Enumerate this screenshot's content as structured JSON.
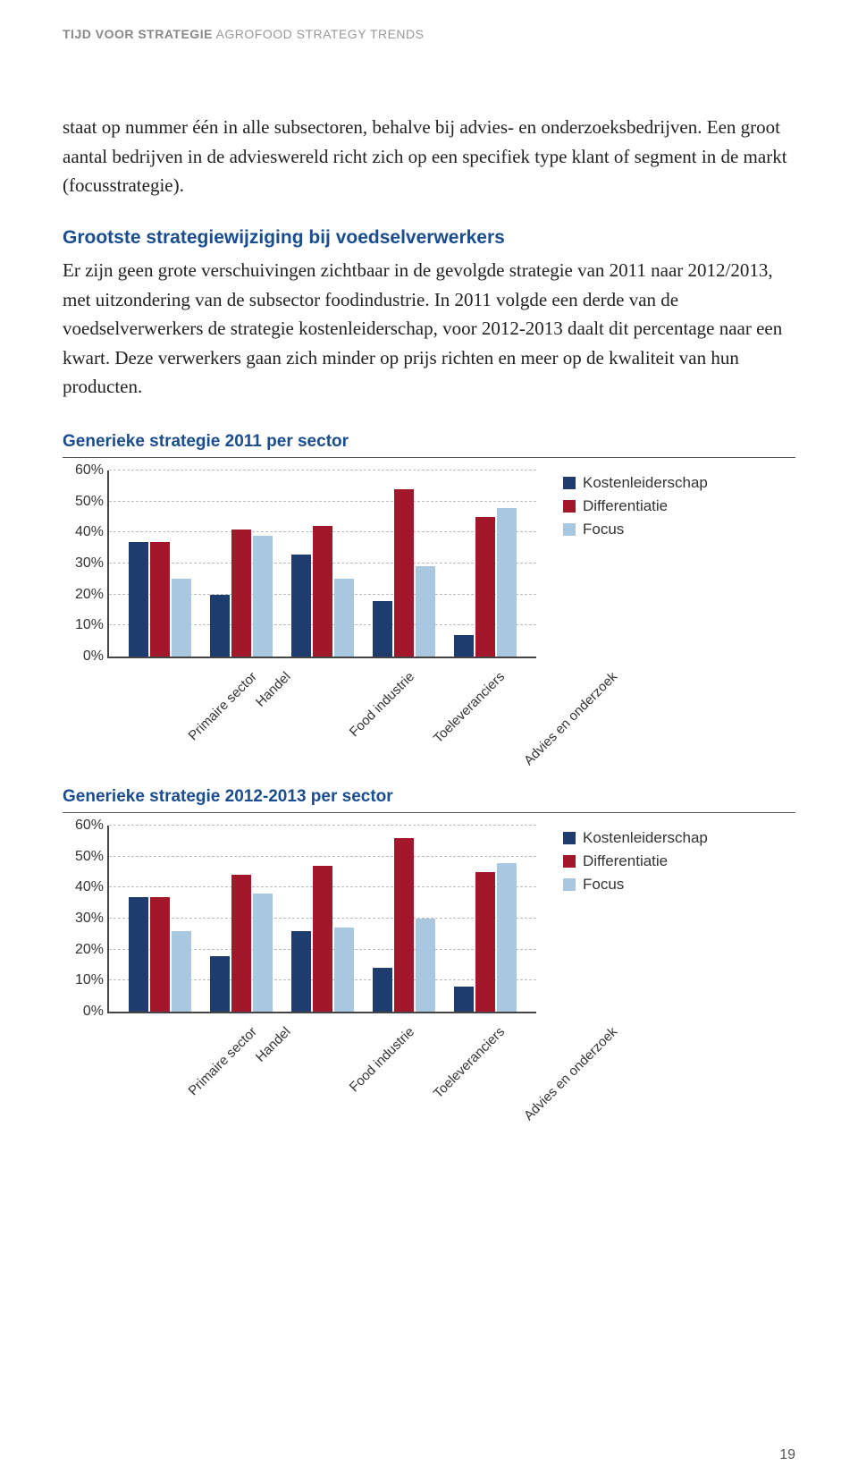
{
  "header": {
    "bold": "TIJD VOOR STRATEGIE",
    "light": " AGROFOOD STRATEGY TRENDS"
  },
  "para1": "staat op nummer één in alle subsectoren, behalve bij advies- en onderzoeksbedrijven. Een groot aantal bedrijven in de advieswereld richt zich op een specifiek type klant of segment in de markt (focusstrategie).",
  "heading2": "Grootste strategiewijziging bij voedselverwerkers",
  "para2": "Er zijn geen grote verschuivingen zichtbaar in de gevolgde strategie van 2011 naar 2012/2013, met uitzondering van de subsector foodindustrie. In 2011 volgde een derde van de voedselverwerkers de strategie kostenleiderschap, voor 2012-2013 daalt dit percentage naar een kwart. Deze verwerkers gaan zich minder op prijs richten en meer op de kwaliteit van hun producten.",
  "chart1": {
    "title": "Generieke strategie 2011 per sector",
    "ylim": 60,
    "ytick_step": 10,
    "colors": {
      "k": "#1f3c6e",
      "d": "#a3172b",
      "f": "#a9c8e0"
    },
    "categories": [
      "Primaire sector",
      "Handel",
      "Food industrie",
      "Toeleveranciers",
      "Advies en onderzoek"
    ],
    "series": [
      {
        "k": 37,
        "d": 37,
        "f": 25
      },
      {
        "k": 20,
        "d": 41,
        "f": 39
      },
      {
        "k": 33,
        "d": 42,
        "f": 25
      },
      {
        "k": 18,
        "d": 54,
        "f": 29
      },
      {
        "k": 7,
        "d": 45,
        "f": 48
      }
    ]
  },
  "chart2": {
    "title": "Generieke strategie 2012-2013 per sector",
    "ylim": 60,
    "ytick_step": 10,
    "colors": {
      "k": "#1f3c6e",
      "d": "#a3172b",
      "f": "#a9c8e0"
    },
    "categories": [
      "Primaire sector",
      "Handel",
      "Food industrie",
      "Toeleveranciers",
      "Advies en onderzoek"
    ],
    "series": [
      {
        "k": 37,
        "d": 37,
        "f": 26
      },
      {
        "k": 18,
        "d": 44,
        "f": 38
      },
      {
        "k": 26,
        "d": 47,
        "f": 27
      },
      {
        "k": 14,
        "d": 56,
        "f": 30
      },
      {
        "k": 8,
        "d": 45,
        "f": 48
      }
    ]
  },
  "legend": {
    "k": "Kostenleiderschap",
    "d": "Differentiatie",
    "f": "Focus"
  },
  "page_number": "19"
}
